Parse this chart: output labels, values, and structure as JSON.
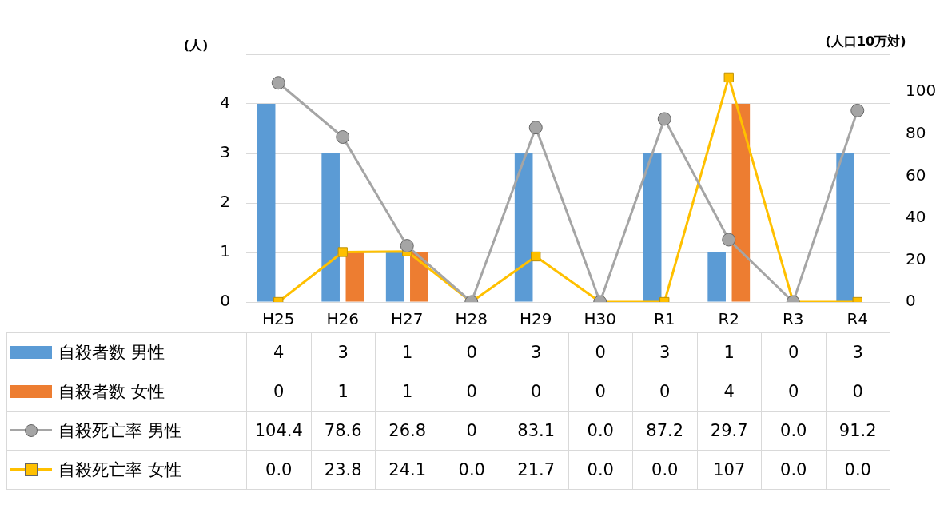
{
  "chart_data": {
    "type": "bar",
    "ylabel": "(人)",
    "y2label": "(人口10万対)",
    "categories": [
      "H25",
      "H26",
      "H27",
      "H28",
      "H29",
      "H30",
      "R1",
      "R2",
      "R3",
      "R4"
    ],
    "series": [
      {
        "name": "自殺者数 男性",
        "color": "#5b9bd5",
        "values": [
          4,
          3,
          1,
          0,
          3,
          0,
          3,
          1,
          0,
          3
        ],
        "value_labels": [
          "4",
          "3",
          "1",
          "0",
          "3",
          "0",
          "3",
          "1",
          "0",
          "3"
        ]
      },
      {
        "name": "自殺者数 女性",
        "color": "#ed7d31",
        "values": [
          0,
          1,
          1,
          0,
          0,
          0,
          0,
          4,
          0,
          0
        ],
        "value_labels": [
          "0",
          "1",
          "1",
          "0",
          "0",
          "0",
          "0",
          "4",
          "0",
          "0"
        ]
      },
      {
        "name": "自殺死亡率 男性",
        "type": "line",
        "axis": "y2",
        "marker": "circle",
        "color": "#a5a5a5",
        "values": [
          104.4,
          78.6,
          26.8,
          0,
          83.1,
          0,
          87.2,
          29.7,
          0,
          91.2
        ],
        "value_labels": [
          "104.4",
          "78.6",
          "26.8",
          "0",
          "83.1",
          "0.0",
          "87.2",
          "29.7",
          "0.0",
          "91.2"
        ]
      },
      {
        "name": "自殺死亡率 女性",
        "type": "line",
        "axis": "y2",
        "marker": "square",
        "color": "#ffc000",
        "values": [
          0,
          23.8,
          24.1,
          0,
          21.7,
          0,
          0,
          107,
          0,
          0
        ],
        "value_labels": [
          "0.0",
          "23.8",
          "24.1",
          "0.0",
          "21.7",
          "0.0",
          "0.0",
          "107",
          "0.0",
          "0.0"
        ]
      }
    ],
    "ylim": [
      0,
      5
    ],
    "yticks": [
      0,
      1,
      2,
      3,
      4
    ],
    "y2lim": [
      0,
      118
    ],
    "y2ticks": [
      0,
      20,
      40,
      60,
      80,
      100
    ],
    "grid": "y",
    "legend": "bottom"
  }
}
